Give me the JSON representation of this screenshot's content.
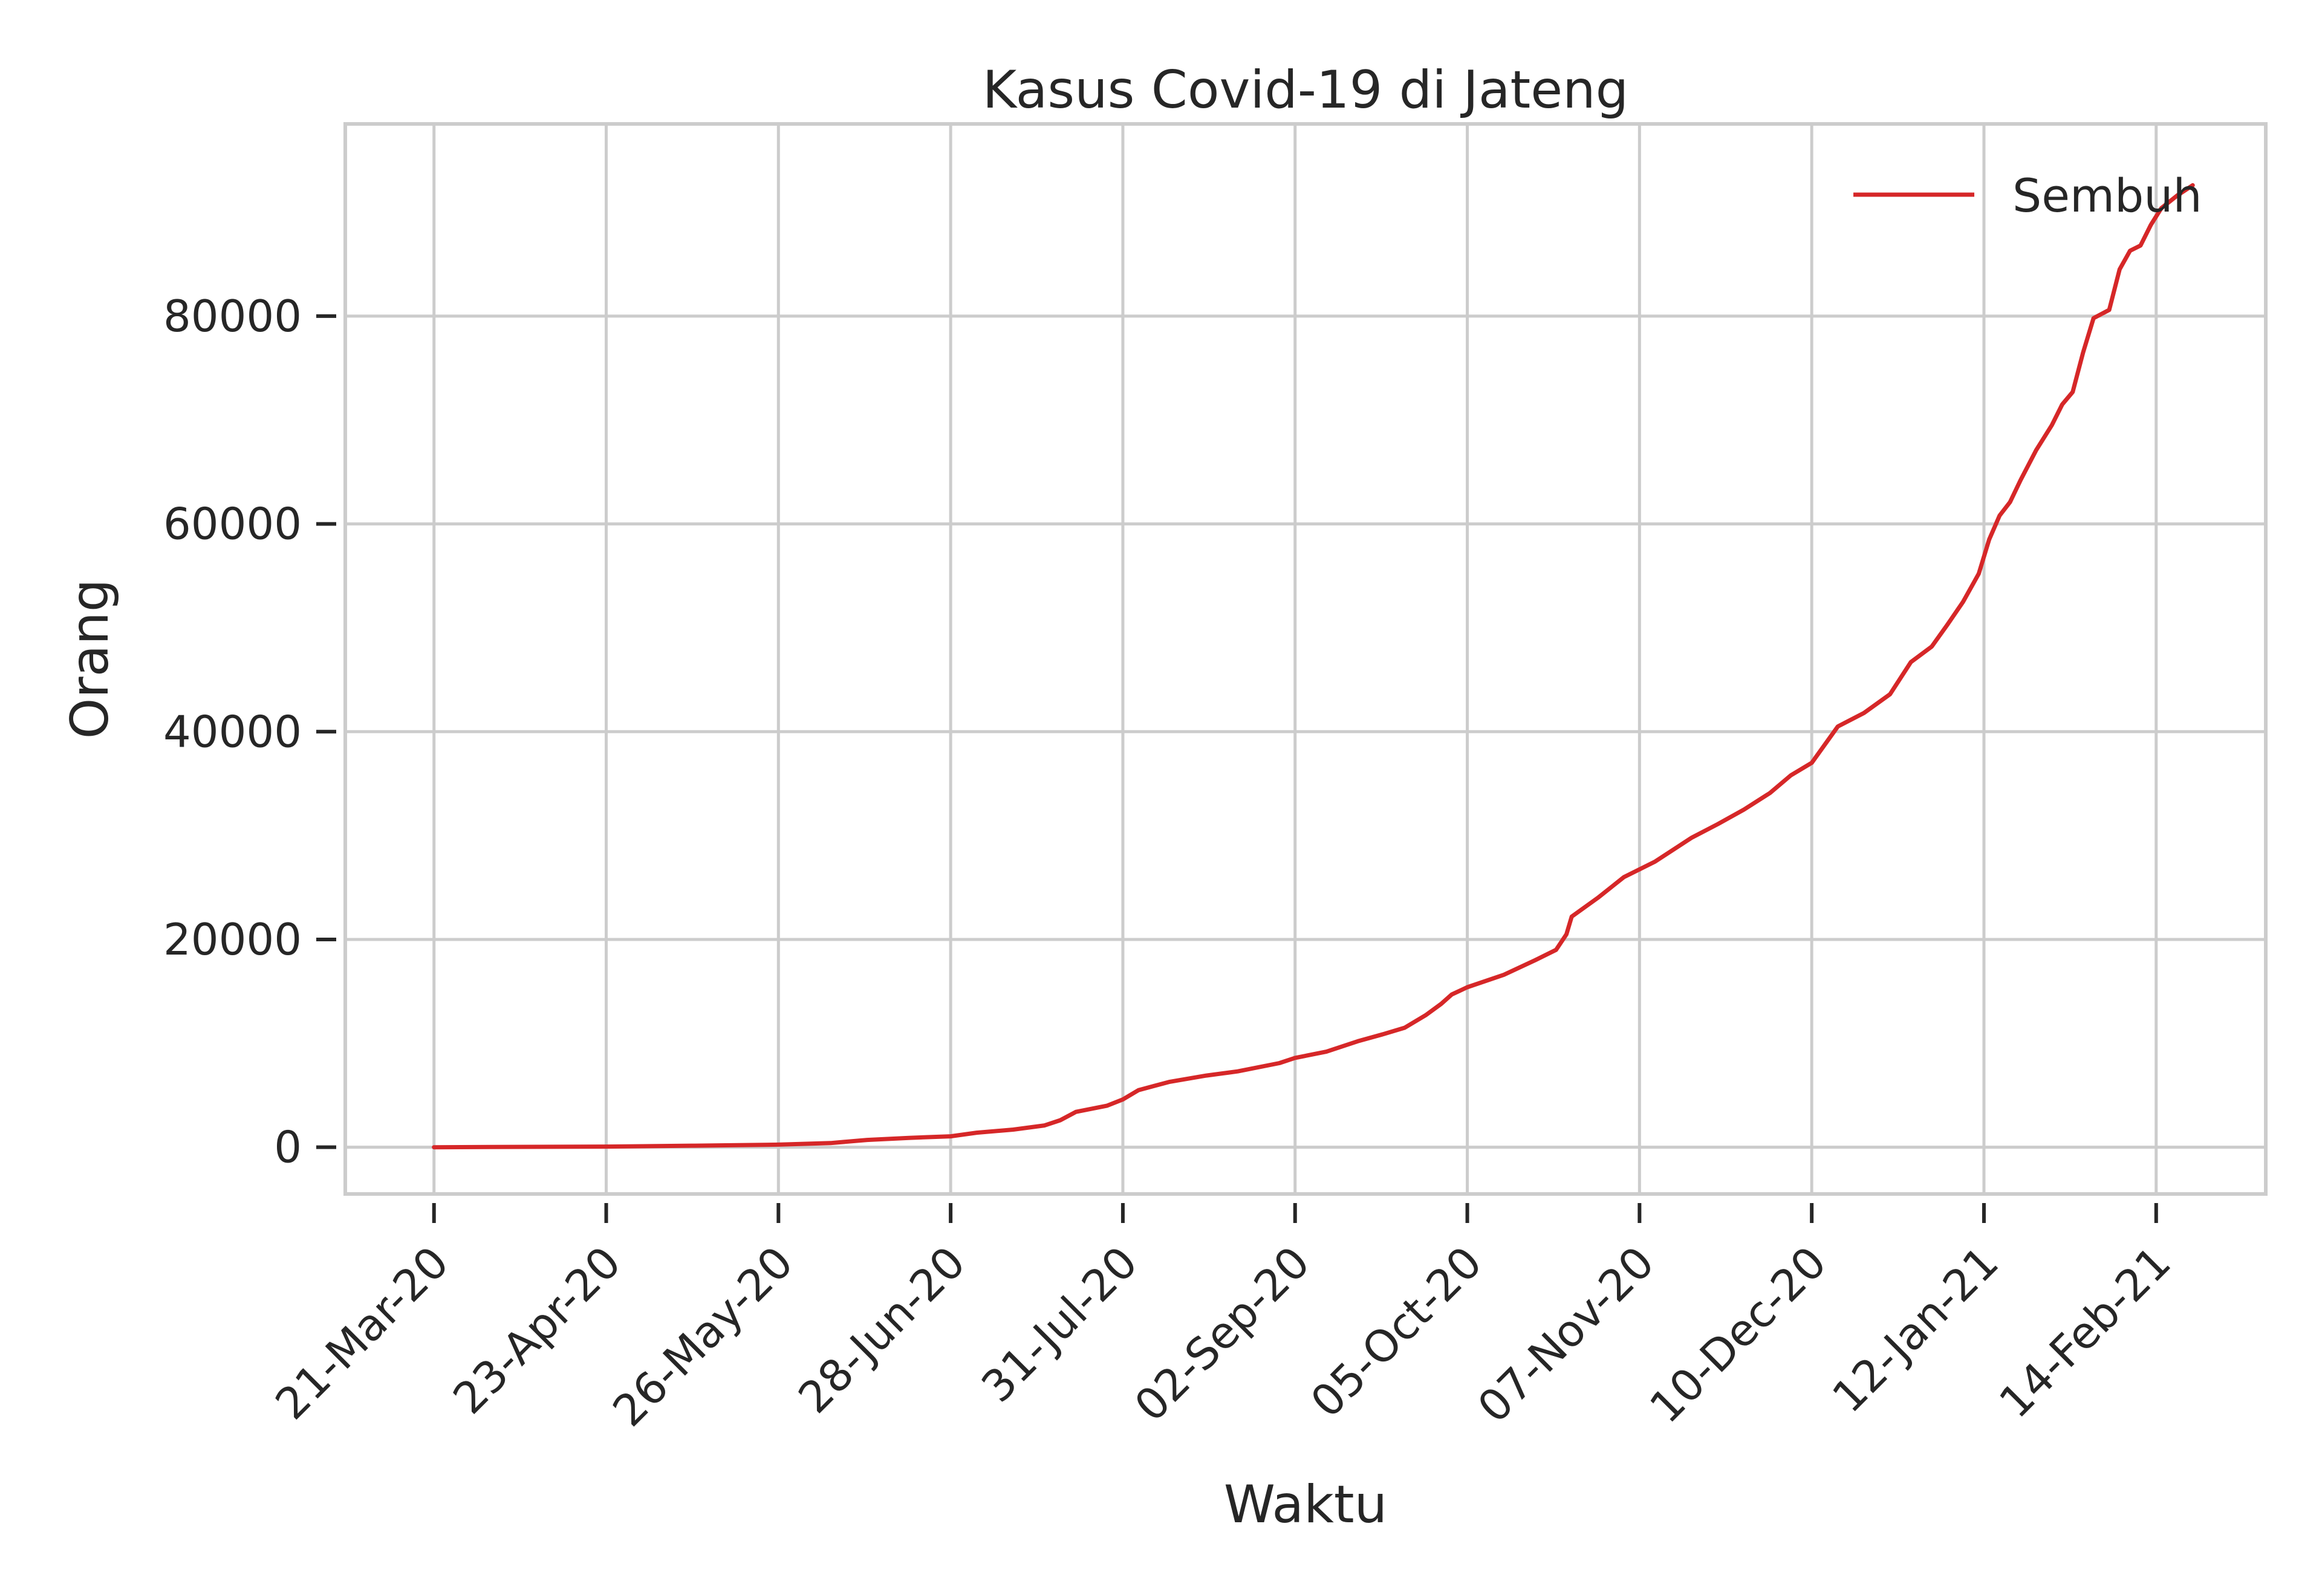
{
  "chart_data": {
    "type": "line",
    "title": "Kasus Covid-19 di Jateng",
    "xlabel": "Waktu",
    "ylabel": "Orang",
    "x_ticks": [
      "21-Mar-20",
      "23-Apr-20",
      "26-May-20",
      "28-Jun-20",
      "31-Jul-20",
      "02-Sep-20",
      "05-Oct-20",
      "07-Nov-20",
      "10-Dec-20",
      "12-Jan-21",
      "14-Feb-21"
    ],
    "y_ticks": [
      "0",
      "20000",
      "40000",
      "60000",
      "80000"
    ],
    "xlim": [
      "2020-03-04",
      "2021-03-07"
    ],
    "ylim": [
      -4500,
      98500
    ],
    "grid": true,
    "legend": "upper right",
    "colors": {
      "line": "#d62728",
      "grid": "#cccccc",
      "text": "#262626"
    },
    "series": [
      {
        "name": "Sembuh",
        "points": [
          [
            "2020-03-21",
            0
          ],
          [
            "2020-04-01",
            20
          ],
          [
            "2020-04-23",
            60
          ],
          [
            "2020-05-10",
            150
          ],
          [
            "2020-05-26",
            250
          ],
          [
            "2020-06-05",
            400
          ],
          [
            "2020-06-12",
            700
          ],
          [
            "2020-06-20",
            900
          ],
          [
            "2020-06-28",
            1050
          ],
          [
            "2020-07-03",
            1400
          ],
          [
            "2020-07-10",
            1700
          ],
          [
            "2020-07-16",
            2100
          ],
          [
            "2020-07-19",
            2600
          ],
          [
            "2020-07-22",
            3400
          ],
          [
            "2020-07-28",
            4000
          ],
          [
            "2020-07-31",
            4600
          ],
          [
            "2020-08-03",
            5500
          ],
          [
            "2020-08-09",
            6300
          ],
          [
            "2020-08-16",
            6900
          ],
          [
            "2020-08-22",
            7300
          ],
          [
            "2020-08-30",
            8100
          ],
          [
            "2020-09-02",
            8600
          ],
          [
            "2020-09-08",
            9200
          ],
          [
            "2020-09-14",
            10200
          ],
          [
            "2020-09-19",
            10900
          ],
          [
            "2020-09-23",
            11500
          ],
          [
            "2020-09-27",
            12700
          ],
          [
            "2020-09-30",
            13800
          ],
          [
            "2020-10-02",
            14700
          ],
          [
            "2020-10-05",
            15400
          ],
          [
            "2020-10-12",
            16600
          ],
          [
            "2020-10-18",
            18000
          ],
          [
            "2020-10-22",
            19000
          ],
          [
            "2020-10-24",
            20500
          ],
          [
            "2020-10-25",
            22200
          ],
          [
            "2020-10-30",
            24000
          ],
          [
            "2020-11-04",
            26000
          ],
          [
            "2020-11-10",
            27500
          ],
          [
            "2020-11-17",
            29800
          ],
          [
            "2020-11-22",
            31100
          ],
          [
            "2020-11-27",
            32500
          ],
          [
            "2020-12-02",
            34100
          ],
          [
            "2020-12-06",
            35800
          ],
          [
            "2020-12-10",
            37000
          ],
          [
            "2020-12-12",
            38400
          ],
          [
            "2020-12-15",
            40500
          ],
          [
            "2020-12-20",
            41800
          ],
          [
            "2020-12-25",
            43600
          ],
          [
            "2020-12-29",
            46700
          ],
          [
            "2021-01-02",
            48200
          ],
          [
            "2021-01-05",
            50300
          ],
          [
            "2021-01-08",
            52500
          ],
          [
            "2021-01-11",
            55200
          ],
          [
            "2021-01-13",
            58500
          ],
          [
            "2021-01-15",
            60800
          ],
          [
            "2021-01-17",
            62100
          ],
          [
            "2021-01-19",
            64200
          ],
          [
            "2021-01-22",
            67100
          ],
          [
            "2021-01-25",
            69500
          ],
          [
            "2021-01-27",
            71500
          ],
          [
            "2021-01-29",
            72700
          ],
          [
            "2021-01-31",
            76500
          ],
          [
            "2021-02-02",
            79800
          ],
          [
            "2021-02-05",
            80600
          ],
          [
            "2021-02-07",
            84500
          ],
          [
            "2021-02-09",
            86300
          ],
          [
            "2021-02-11",
            86800
          ],
          [
            "2021-02-13",
            88800
          ],
          [
            "2021-02-15",
            90400
          ],
          [
            "2021-02-18",
            91600
          ],
          [
            "2021-02-21",
            92600
          ]
        ]
      }
    ]
  }
}
